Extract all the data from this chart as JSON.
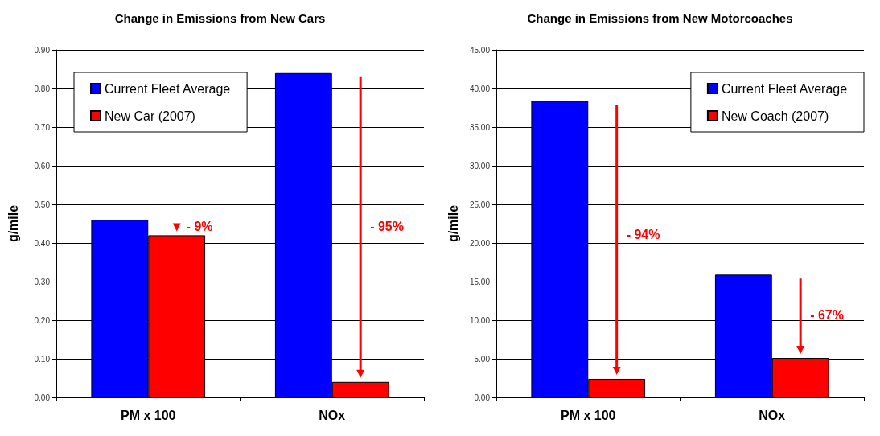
{
  "chart_data": [
    {
      "type": "bar",
      "title": "Change in Emissions from New Cars",
      "ylabel": "g/mile",
      "categories": [
        "PM x 100",
        "NOx"
      ],
      "series": [
        {
          "name": "Current Fleet Average",
          "color": "#0000ff",
          "values": [
            0.46,
            0.84
          ]
        },
        {
          "name": "New Car (2007)",
          "color": "#ff0000",
          "values": [
            0.42,
            0.04
          ]
        }
      ],
      "ylim": [
        0,
        0.9
      ],
      "yticks": [
        {
          "value": 0,
          "label": "0.00"
        },
        {
          "value": 0.1,
          "label": "0.10"
        },
        {
          "value": 0.2,
          "label": "0.20"
        },
        {
          "value": 0.3,
          "label": "0.30"
        },
        {
          "value": 0.4,
          "label": "0.40"
        },
        {
          "value": 0.5,
          "label": "0.50"
        },
        {
          "value": 0.6,
          "label": "0.60"
        },
        {
          "value": 0.7,
          "label": "0.70"
        },
        {
          "value": 0.8,
          "label": "0.80"
        },
        {
          "value": 0.9,
          "label": "0.90"
        }
      ],
      "annotations": [
        {
          "text": "- 9%",
          "x": "PM x 100",
          "y": 0.44
        },
        {
          "text": "- 95%",
          "x": "NOx",
          "y": 0.44
        }
      ],
      "grid": "y",
      "legend": "top left"
    },
    {
      "type": "bar",
      "title": "Change in Emissions from New Motorcoaches",
      "ylabel": "g/mile",
      "categories": [
        "PM x 100",
        "NOx"
      ],
      "series": [
        {
          "name": "Current Fleet Average",
          "color": "#0000ff",
          "values": [
            38.4,
            15.9
          ]
        },
        {
          "name": "New Coach (2007)",
          "color": "#ff0000",
          "values": [
            2.4,
            5.1
          ]
        }
      ],
      "ylim": [
        0,
        45
      ],
      "yticks": [
        {
          "value": 0,
          "label": "0.00"
        },
        {
          "value": 5,
          "label": "5.00"
        },
        {
          "value": 10,
          "label": "10.00"
        },
        {
          "value": 15,
          "label": "15.00"
        },
        {
          "value": 20,
          "label": "20.00"
        },
        {
          "value": 25,
          "label": "25.00"
        },
        {
          "value": 30,
          "label": "30.00"
        },
        {
          "value": 35,
          "label": "35.00"
        },
        {
          "value": 40,
          "label": "40.00"
        },
        {
          "value": 45,
          "label": "45.00"
        }
      ],
      "annotations": [
        {
          "text": "- 94%",
          "x": "PM x 100",
          "y": 21
        },
        {
          "text": "- 67%",
          "x": "NOx",
          "y": 10.5
        }
      ],
      "grid": "y",
      "legend": "top right"
    }
  ]
}
